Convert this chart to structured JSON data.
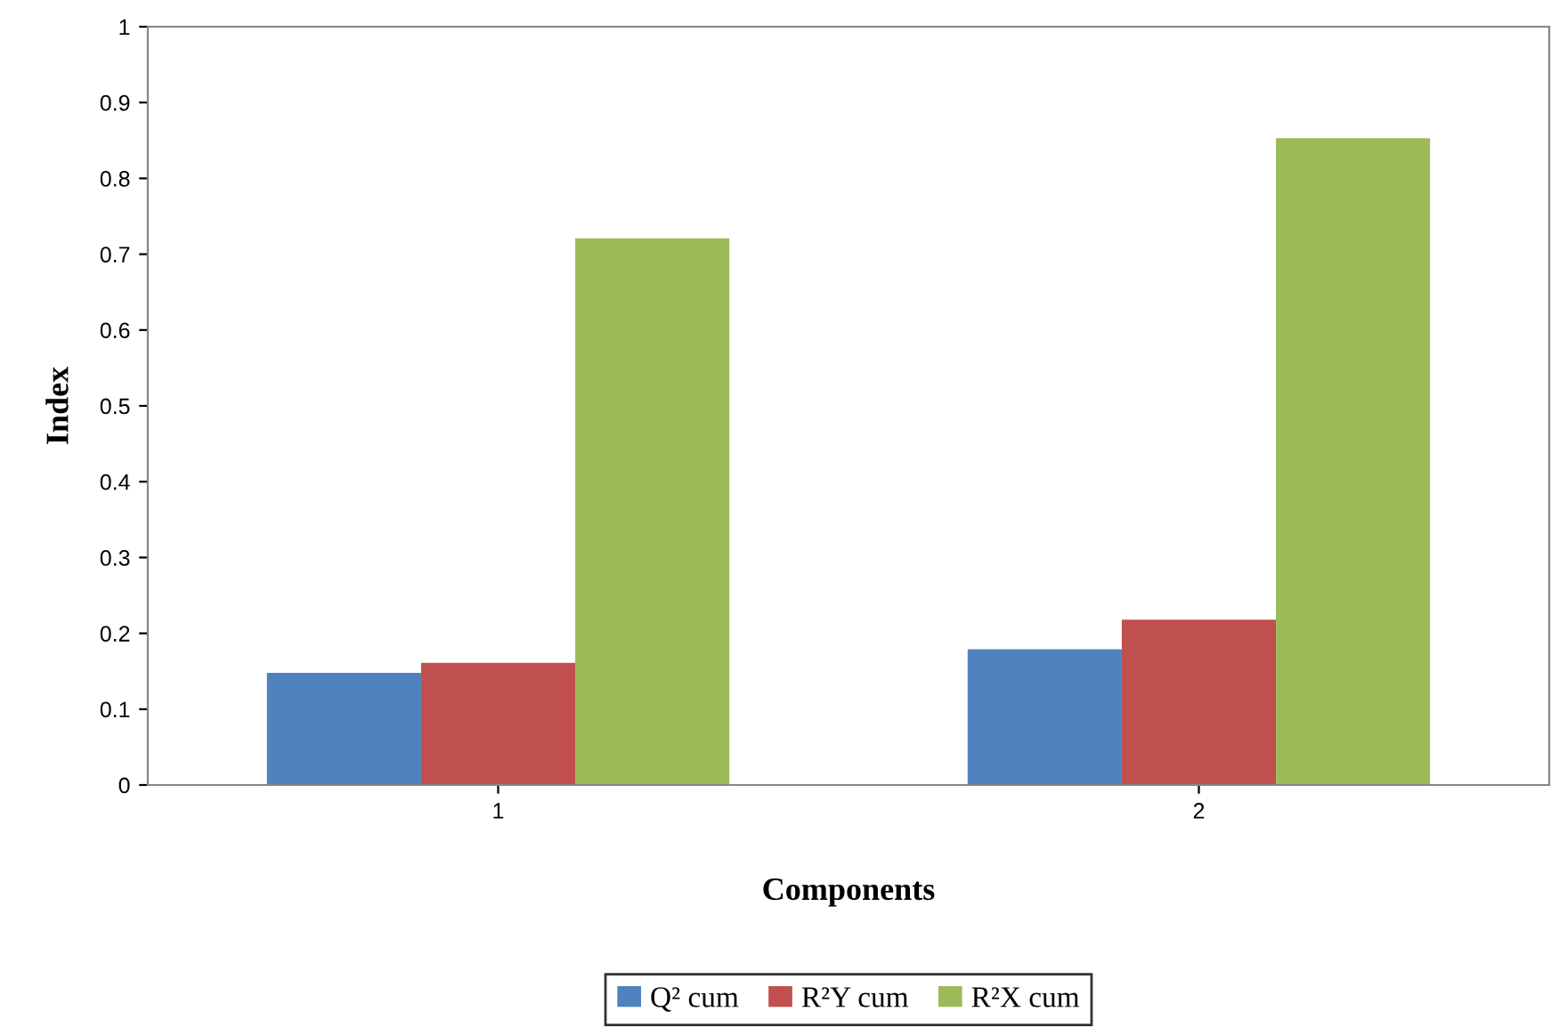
{
  "chart_data": {
    "type": "bar",
    "xlabel": "Components",
    "ylabel": "Index",
    "categories": [
      "1",
      "2"
    ],
    "series": [
      {
        "name": "Q² cum",
        "color": "#4f81bd",
        "values": [
          0.148,
          0.179
        ]
      },
      {
        "name": "R²Y cum",
        "color": "#c0504d",
        "values": [
          0.161,
          0.218
        ]
      },
      {
        "name": "R²X cum",
        "color": "#9bbb59",
        "values": [
          0.721,
          0.853
        ]
      }
    ],
    "ylim": [
      0,
      1
    ],
    "yticks": [
      0,
      0.1,
      0.2,
      0.3,
      0.4,
      0.5,
      0.6,
      0.7,
      0.8,
      0.9,
      1
    ],
    "grid": false,
    "legend": "bottom"
  }
}
